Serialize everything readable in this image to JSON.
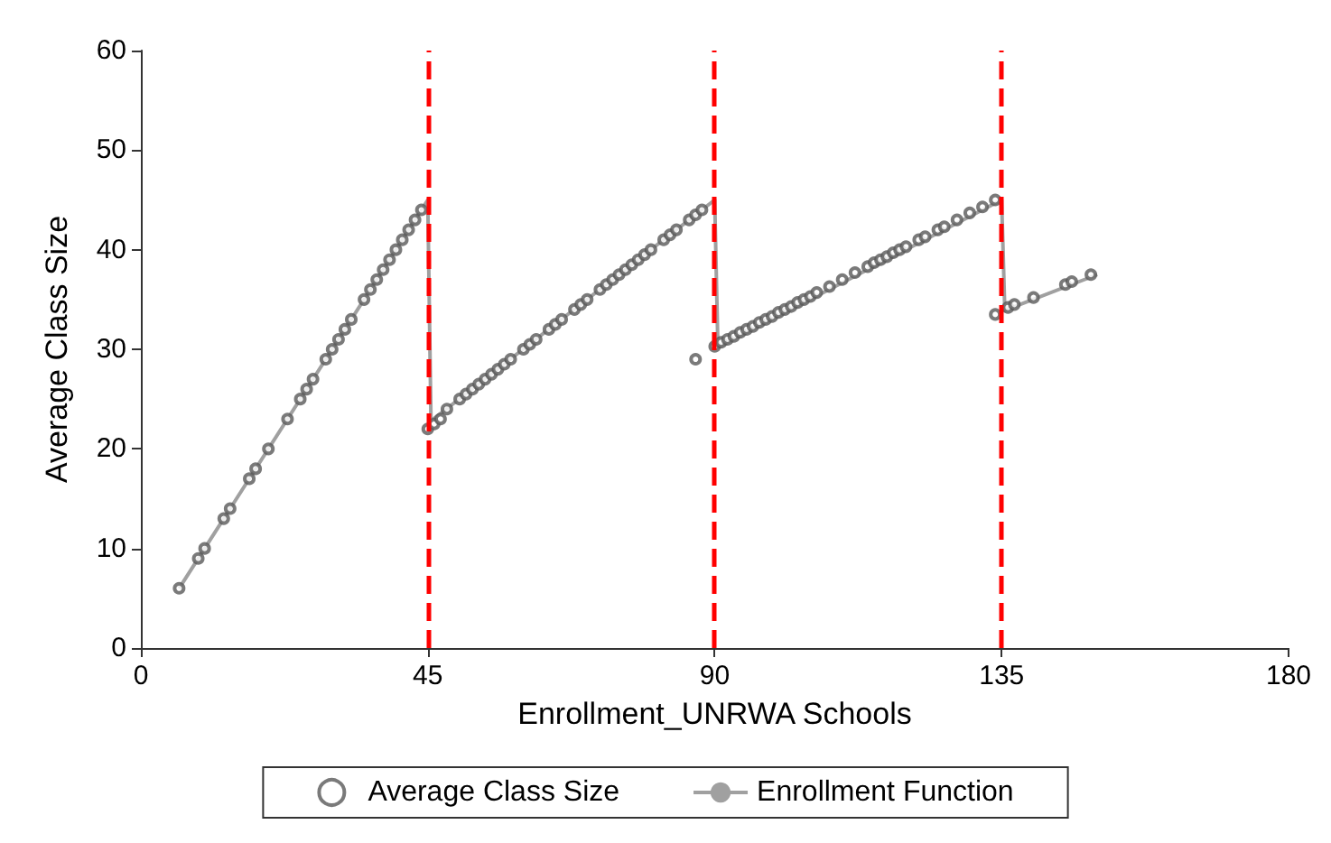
{
  "chart_data": {
    "type": "scatter",
    "xlabel": "Enrollment_UNRWA Schools",
    "ylabel": "Average Class Size",
    "xlim": [
      0,
      180
    ],
    "xticks": [
      0,
      45,
      90,
      135,
      180
    ],
    "ylim": [
      0,
      60
    ],
    "yticks": [
      0,
      10,
      20,
      30,
      40,
      50,
      60
    ],
    "grid": false,
    "legend": "bottom",
    "marker": "circle",
    "series": [
      {
        "name": "Average Class Size",
        "color": "#595959",
        "x": [
          6,
          9,
          10,
          13,
          14,
          17,
          18,
          20,
          23,
          25,
          26,
          27,
          29,
          30,
          31,
          32,
          33,
          35,
          36,
          37,
          38,
          39,
          40,
          41,
          42,
          43,
          44,
          45,
          46,
          47,
          48,
          50,
          51,
          52,
          53,
          54,
          55,
          56,
          57,
          58,
          60,
          61,
          62,
          64,
          65,
          66,
          68,
          69,
          70,
          72,
          73,
          74,
          75,
          76,
          77,
          78,
          79,
          80,
          82,
          83,
          84,
          86,
          87,
          88,
          87,
          90,
          91,
          92,
          93,
          94,
          95,
          96,
          97,
          98,
          99,
          100,
          101,
          102,
          103,
          104,
          105,
          106,
          108,
          110,
          112,
          114,
          115,
          116,
          117,
          118,
          119,
          120,
          122,
          123,
          125,
          126,
          128,
          130,
          132,
          134,
          134,
          136,
          137,
          140,
          145,
          146,
          149
        ],
        "values": [
          6,
          9,
          10,
          13,
          14,
          17,
          18,
          20,
          23,
          25,
          26,
          27,
          29,
          30,
          31,
          32,
          33,
          35,
          36,
          37,
          38,
          39,
          40,
          41,
          42,
          43,
          44,
          22,
          22.5,
          23,
          24,
          25,
          25.5,
          26,
          26.5,
          27,
          27.5,
          28,
          28.5,
          29,
          30,
          30.5,
          31,
          32,
          32.5,
          33,
          34,
          34.5,
          35,
          36,
          36.5,
          37,
          37.5,
          38,
          38.5,
          39,
          39.5,
          40,
          41,
          41.5,
          42,
          43,
          43.5,
          44,
          29,
          30.3,
          30.7,
          31,
          31.3,
          31.7,
          32,
          32.3,
          32.7,
          33,
          33.3,
          33.7,
          34,
          34.3,
          34.7,
          35,
          35.3,
          35.7,
          36.3,
          37,
          37.7,
          38.3,
          38.7,
          39,
          39.3,
          39.7,
          40,
          40.3,
          41,
          41.3,
          42,
          42.3,
          43,
          43.7,
          44.3,
          45,
          33.5,
          34.2,
          34.5,
          35.2,
          36.5,
          36.8,
          37.5
        ]
      },
      {
        "name": "Enrollment Function",
        "type": "line",
        "color": "#a0a0a0",
        "marker": "none",
        "x": [
          6,
          45,
          45.5,
          90,
          90.5,
          135,
          135.5,
          150
        ],
        "values": [
          6,
          45,
          22.8,
          45,
          30.2,
          45,
          33.9,
          37.5
        ]
      }
    ],
    "ref_lines": [
      {
        "axis": "x",
        "value": 45,
        "color": "#ff0000",
        "line_style": "dashed"
      },
      {
        "axis": "x",
        "value": 90,
        "color": "#ff0000",
        "line_style": "dashed"
      },
      {
        "axis": "x",
        "value": 135,
        "color": "#ff0000",
        "line_style": "dashed"
      }
    ]
  }
}
